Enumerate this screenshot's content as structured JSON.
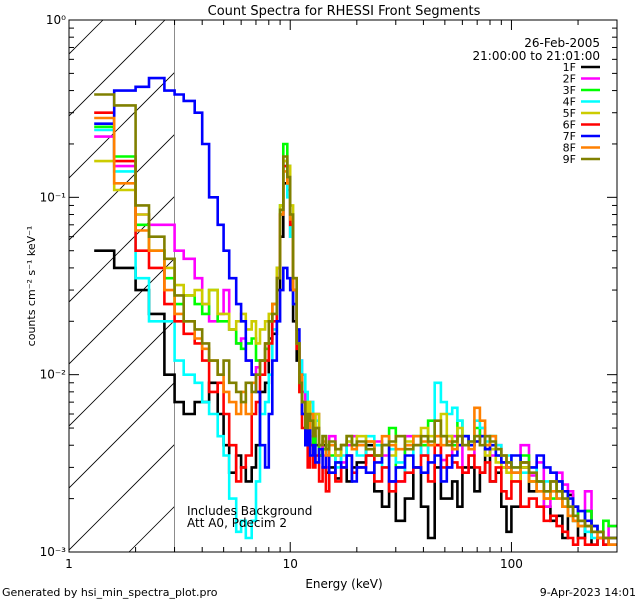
{
  "chart_data": {
    "type": "line",
    "title": "Count Spectra for RHESSI Front Segments",
    "xlabel": "Energy (keV)",
    "ylabel": "counts cm⁻² s⁻¹ keV⁻¹",
    "xscale": "log",
    "yscale": "log",
    "xlim": [
      1,
      300
    ],
    "ylim": [
      0.001,
      1
    ],
    "x_ticks": [
      {
        "value": 1,
        "label": "1"
      },
      {
        "value": 10,
        "label": "10"
      },
      {
        "value": 100,
        "label": "100"
      }
    ],
    "y_ticks": [
      {
        "value": 1,
        "label": "10⁰"
      },
      {
        "value": 0.1,
        "label": "10⁻¹"
      },
      {
        "value": 0.01,
        "label": "10⁻²"
      },
      {
        "value": 0.001,
        "label": "10⁻³"
      }
    ],
    "date": "26-Feb-2005",
    "time_range": "21:00:00 to 21:01:00",
    "shaded_region_upper_keV": 3.0,
    "annotation": [
      "Includes Background",
      "Att A0, Pdecim 2"
    ],
    "footer_left": "Generated by hsi_min_spectra_plot.pro",
    "footer_right": "9-Apr-2023 14:01",
    "energy_edges": [
      1.3,
      1.6,
      2.0,
      2.3,
      2.7,
      3.0,
      3.3,
      3.7,
      4.0,
      4.3,
      4.7,
      5.0,
      5.3,
      5.7,
      6.0,
      6.3,
      6.7,
      7.0,
      7.3,
      7.7,
      8.0,
      8.3,
      8.7,
      9.0,
      9.3,
      9.7,
      10.0,
      10.3,
      10.7,
      11.0,
      11.3,
      11.7,
      12.0,
      12.3,
      12.7,
      13.0,
      13.5,
      14.0,
      14.5,
      15,
      16,
      17,
      18,
      19,
      20,
      22,
      24,
      26,
      28,
      30,
      33,
      36,
      39,
      42,
      45,
      48,
      51,
      54,
      57,
      60,
      64,
      68,
      72,
      76,
      80,
      85,
      90,
      95,
      100,
      110,
      120,
      130,
      140,
      150,
      160,
      170,
      180,
      190,
      200,
      215,
      230,
      245,
      260,
      275,
      300
    ],
    "series": [
      {
        "name": "1F",
        "color": "#000000",
        "values": [
          0.05,
          0.04,
          0.03,
          0.022,
          0.01,
          0.007,
          0.006,
          0.007,
          0.007,
          0.009,
          0.006,
          0.004,
          0.0028,
          0.0035,
          0.003,
          0.0025,
          0.003,
          0.004,
          0.008,
          0.009,
          0.016,
          0.017,
          0.03,
          0.06,
          0.12,
          0.11,
          0.06,
          0.02,
          0.012,
          0.01,
          0.007,
          0.005,
          0.006,
          0.004,
          0.0045,
          0.004,
          0.0035,
          0.004,
          0.0028,
          0.003,
          0.0026,
          0.004,
          0.0025,
          0.003,
          0.0032,
          0.004,
          0.0022,
          0.0018,
          0.0025,
          0.0015,
          0.002,
          0.003,
          0.0018,
          0.0012,
          0.003,
          0.002,
          0.002,
          0.0025,
          0.0018,
          0.003,
          0.003,
          0.0022,
          0.0028,
          0.0038,
          0.0025,
          0.0028,
          0.0018,
          0.0013,
          0.0018,
          0.003,
          0.0022,
          0.0025,
          0.0018,
          0.0015,
          0.0016,
          0.0012,
          0.0021,
          0.0015,
          0.0012,
          0.0017,
          0.0011,
          0.0012,
          0.0011,
          0.0012
        ]
      },
      {
        "name": "2F",
        "color": "#ff00ff",
        "values": [
          0.22,
          0.15,
          0.08,
          0.07,
          0.07,
          0.05,
          0.045,
          0.035,
          0.025,
          0.02,
          0.022,
          0.03,
          0.018,
          0.015,
          0.016,
          0.012,
          0.01,
          0.011,
          0.012,
          0.014,
          0.02,
          0.025,
          0.04,
          0.08,
          0.16,
          0.15,
          0.08,
          0.03,
          0.015,
          0.012,
          0.008,
          0.006,
          0.005,
          0.007,
          0.004,
          0.006,
          0.004,
          0.0035,
          0.003,
          0.0045,
          0.0035,
          0.0032,
          0.004,
          0.0045,
          0.004,
          0.0035,
          0.0042,
          0.0035,
          0.0025,
          0.0025,
          0.0045,
          0.004,
          0.0035,
          0.004,
          0.004,
          0.0033,
          0.003,
          0.0045,
          0.004,
          0.0028,
          0.0035,
          0.0045,
          0.005,
          0.0045,
          0.0035,
          0.004,
          0.0032,
          0.003,
          0.0028,
          0.004,
          0.0027,
          0.0032,
          0.0018,
          0.0025,
          0.0028,
          0.0024,
          0.0022,
          0.0018,
          0.0015,
          0.0022,
          0.0014,
          0.0013,
          0.0012,
          0.0014
        ]
      },
      {
        "name": "3F",
        "color": "#00ff00",
        "values": [
          0.25,
          0.17,
          0.07,
          0.05,
          0.035,
          0.025,
          0.028,
          0.025,
          0.022,
          0.03,
          0.02,
          0.02,
          0.018,
          0.015,
          0.014,
          0.015,
          0.016,
          0.012,
          0.012,
          0.014,
          0.02,
          0.025,
          0.04,
          0.09,
          0.2,
          0.15,
          0.08,
          0.03,
          0.015,
          0.01,
          0.006,
          0.004,
          0.005,
          0.006,
          0.004,
          0.005,
          0.0035,
          0.0038,
          0.004,
          0.0035,
          0.0032,
          0.004,
          0.0045,
          0.004,
          0.004,
          0.0035,
          0.0035,
          0.004,
          0.005,
          0.003,
          0.004,
          0.0045,
          0.004,
          0.0055,
          0.004,
          0.0045,
          0.0045,
          0.004,
          0.0055,
          0.0045,
          0.004,
          0.005,
          0.0045,
          0.004,
          0.0045,
          0.0035,
          0.003,
          0.0032,
          0.0028,
          0.0035,
          0.0025,
          0.0025,
          0.0022,
          0.002,
          0.0025,
          0.0022,
          0.0018,
          0.0018,
          0.0015,
          0.0017,
          0.0014,
          0.0013,
          0.0015,
          0.0014
        ]
      },
      {
        "name": "4F",
        "color": "#00ffff",
        "values": [
          0.24,
          0.14,
          0.035,
          0.02,
          0.02,
          0.012,
          0.01,
          0.009,
          0.007,
          0.006,
          0.0045,
          0.0035,
          0.002,
          0.0013,
          0.0015,
          0.0012,
          0.0015,
          0.0025,
          0.006,
          0.007,
          0.01,
          0.018,
          0.035,
          0.08,
          0.15,
          0.1,
          0.06,
          0.025,
          0.015,
          0.012,
          0.01,
          0.008,
          0.006,
          0.007,
          0.005,
          0.0055,
          0.004,
          0.0045,
          0.0035,
          0.004,
          0.003,
          0.0035,
          0.0042,
          0.004,
          0.0035,
          0.0045,
          0.004,
          0.003,
          0.0038,
          0.0032,
          0.0028,
          0.0045,
          0.0035,
          0.004,
          0.009,
          0.007,
          0.006,
          0.0065,
          0.0055,
          0.0045,
          0.0042,
          0.0055,
          0.005,
          0.0042,
          0.0045,
          0.004,
          0.0035,
          0.0035,
          0.003,
          0.0028,
          0.003,
          0.0025,
          0.0025,
          0.0022,
          0.002,
          0.0018,
          0.0016,
          0.0015,
          0.0014,
          0.0013,
          0.0012,
          0.0012,
          0.0011,
          0.0011
        ]
      },
      {
        "name": "5F",
        "color": "#cccc00",
        "values": [
          0.16,
          0.11,
          0.08,
          0.05,
          0.04,
          0.032,
          0.028,
          0.03,
          0.025,
          0.03,
          0.022,
          0.022,
          0.018,
          0.02,
          0.022,
          0.018,
          0.02,
          0.015,
          0.018,
          0.02,
          0.022,
          0.025,
          0.04,
          0.09,
          0.16,
          0.15,
          0.09,
          0.035,
          0.015,
          0.008,
          0.006,
          0.005,
          0.007,
          0.006,
          0.005,
          0.006,
          0.004,
          0.0045,
          0.0038,
          0.004,
          0.0035,
          0.004,
          0.0042,
          0.004,
          0.0045,
          0.0042,
          0.0035,
          0.004,
          0.0035,
          0.0045,
          0.0042,
          0.004,
          0.005,
          0.0045,
          0.004,
          0.006,
          0.0045,
          0.0042,
          0.005,
          0.0045,
          0.004,
          0.0042,
          0.0045,
          0.0035,
          0.0038,
          0.0032,
          0.003,
          0.0028,
          0.0025,
          0.003,
          0.0025,
          0.0022,
          0.002,
          0.0025,
          0.0022,
          0.0018,
          0.0016,
          0.0015,
          0.0014,
          0.0014,
          0.0013,
          0.0013,
          0.0012,
          0.0012
        ]
      },
      {
        "name": "6F",
        "color": "#ff0000",
        "values": [
          0.3,
          0.16,
          0.05,
          0.04,
          0.025,
          0.02,
          0.017,
          0.015,
          0.012,
          0.008,
          0.009,
          0.006,
          0.004,
          0.0025,
          0.003,
          0.0035,
          0.006,
          0.007,
          0.01,
          0.012,
          0.015,
          0.02,
          0.035,
          0.08,
          0.15,
          0.12,
          0.07,
          0.03,
          0.014,
          0.008,
          0.005,
          0.004,
          0.003,
          0.004,
          0.003,
          0.0035,
          0.0025,
          0.003,
          0.0022,
          0.0028,
          0.0025,
          0.003,
          0.0035,
          0.0028,
          0.003,
          0.0035,
          0.0025,
          0.003,
          0.0022,
          0.0025,
          0.0028,
          0.003,
          0.0035,
          0.0025,
          0.004,
          0.003,
          0.0035,
          0.0032,
          0.003,
          0.0028,
          0.0035,
          0.003,
          0.0028,
          0.0032,
          0.0025,
          0.003,
          0.0022,
          0.002,
          0.0025,
          0.0018,
          0.002,
          0.0018,
          0.0015,
          0.0016,
          0.0014,
          0.0013,
          0.0012,
          0.0011,
          0.0012,
          0.0011,
          0.0011,
          0.0012,
          0.0011,
          0.0011
        ]
      },
      {
        "name": "7F",
        "color": "#0000ff",
        "values": [
          0.26,
          0.4,
          0.42,
          0.47,
          0.4,
          0.38,
          0.35,
          0.3,
          0.2,
          0.1,
          0.07,
          0.05,
          0.035,
          0.025,
          0.02,
          0.012,
          0.01,
          0.008,
          0.004,
          0.003,
          0.006,
          0.012,
          0.02,
          0.03,
          0.04,
          0.035,
          0.03,
          0.025,
          0.018,
          0.01,
          0.006,
          0.004,
          0.005,
          0.0035,
          0.004,
          0.0032,
          0.0038,
          0.003,
          0.0035,
          0.0028,
          0.0032,
          0.003,
          0.0035,
          0.0025,
          0.003,
          0.0028,
          0.0032,
          0.004,
          0.0025,
          0.003,
          0.0035,
          0.003,
          0.0028,
          0.0032,
          0.0035,
          0.0025,
          0.003,
          0.0035,
          0.004,
          0.0045,
          0.004,
          0.0042,
          0.0045,
          0.0038,
          0.004,
          0.0035,
          0.0032,
          0.003,
          0.0035,
          0.0032,
          0.003,
          0.0035,
          0.003,
          0.0028,
          0.0025,
          0.0022,
          0.002,
          0.0018,
          0.0017,
          0.0015,
          0.0014,
          0.0013,
          0.0012,
          0.0012
        ]
      },
      {
        "name": "8F",
        "color": "#ff8000",
        "values": [
          0.28,
          0.12,
          0.065,
          0.05,
          0.03,
          0.022,
          0.02,
          0.016,
          0.014,
          0.012,
          0.01,
          0.008,
          0.007,
          0.006,
          0.008,
          0.006,
          0.009,
          0.01,
          0.012,
          0.015,
          0.02,
          0.025,
          0.035,
          0.08,
          0.14,
          0.12,
          0.075,
          0.03,
          0.015,
          0.01,
          0.007,
          0.0055,
          0.005,
          0.006,
          0.0045,
          0.005,
          0.004,
          0.0042,
          0.0035,
          0.004,
          0.0038,
          0.004,
          0.0045,
          0.0038,
          0.004,
          0.0042,
          0.0035,
          0.0045,
          0.004,
          0.0038,
          0.004,
          0.0045,
          0.0042,
          0.004,
          0.0045,
          0.004,
          0.0042,
          0.0038,
          0.0045,
          0.004,
          0.0038,
          0.0065,
          0.0055,
          0.004,
          0.0045,
          0.0038,
          0.0035,
          0.003,
          0.0028,
          0.0032,
          0.0025,
          0.0022,
          0.002,
          0.0022,
          0.002,
          0.0018,
          0.0016,
          0.0015,
          0.0014,
          0.0014,
          0.0013,
          0.0012,
          0.0012,
          0.0011
        ]
      },
      {
        "name": "9F",
        "color": "#808000",
        "values": [
          0.38,
          0.33,
          0.09,
          0.06,
          0.045,
          0.028,
          0.02,
          0.018,
          0.015,
          0.012,
          0.01,
          0.012,
          0.009,
          0.008,
          0.007,
          0.009,
          0.008,
          0.01,
          0.012,
          0.015,
          0.02,
          0.022,
          0.035,
          0.085,
          0.17,
          0.13,
          0.08,
          0.035,
          0.015,
          0.009,
          0.007,
          0.005,
          0.006,
          0.0055,
          0.0045,
          0.005,
          0.004,
          0.0045,
          0.0038,
          0.0042,
          0.0038,
          0.004,
          0.0045,
          0.004,
          0.0042,
          0.0038,
          0.0035,
          0.004,
          0.0042,
          0.0045,
          0.0038,
          0.004,
          0.0045,
          0.0042,
          0.0055,
          0.0045,
          0.004,
          0.0042,
          0.0045,
          0.004,
          0.0042,
          0.0045,
          0.004,
          0.0045,
          0.0042,
          0.0038,
          0.0035,
          0.0032,
          0.003,
          0.0032,
          0.0028,
          0.0025,
          0.0022,
          0.0025,
          0.0022,
          0.002,
          0.0018,
          0.0016,
          0.0015,
          0.0014,
          0.0013,
          0.0013,
          0.0012,
          0.0012
        ]
      }
    ]
  }
}
